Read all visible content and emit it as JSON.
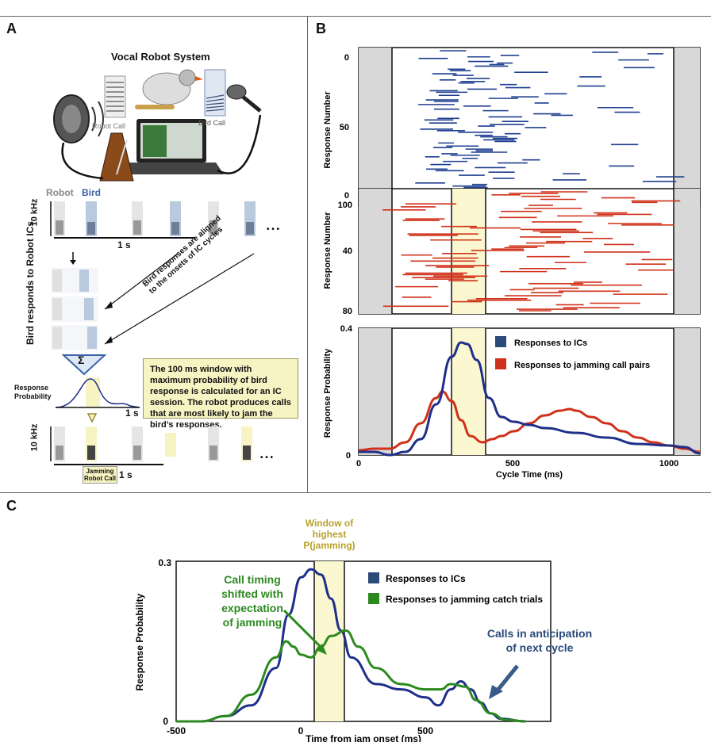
{
  "panels": {
    "A": {
      "label": "A",
      "title": "Vocal Robot System",
      "robot_call": "Robot Call",
      "bird_call": "Bird Call",
      "robot": "Robot",
      "bird": "Bird",
      "freq": "10 kHz",
      "scale": "1 s",
      "side_label": "Bird responds to Robot ICs",
      "arrow_text_1": "Bird responses are aligned",
      "arrow_text_2": "to the onsets of IC cycles",
      "sigma": "Σ",
      "response_probability": "Response Probability",
      "note": "The 100 ms window with maximum probability of bird response is calculated for an IC session. The robot produces calls that are most likely to jam the bird’s responses.",
      "jamming_1": "Jamming",
      "jamming_2": "Robot Call",
      "dots": "• • •"
    },
    "B": {
      "label": "B",
      "raster1_ylabel": "Response Number",
      "raster1_ticks": [
        "0",
        "50",
        "100"
      ],
      "raster2_ylabel": "Response Number",
      "raster2_ticks": [
        "0",
        "40",
        "80"
      ],
      "prob_ylabel": "Response Probability",
      "prob_ticks": [
        "0",
        "0.4"
      ],
      "xlabel": "Cycle Time (ms)",
      "xticks": [
        "0",
        "500",
        "1000"
      ],
      "legend": [
        "Responses to ICs",
        "Responses to jamming call pairs"
      ]
    },
    "C": {
      "label": "C",
      "window_label_1": "Window of",
      "window_label_2": "highest",
      "window_label_3": "P(jamming)",
      "ylabel": "Response Probability",
      "yticks": [
        "0",
        "0.3"
      ],
      "xlabel": "Time from jam onset (ms)",
      "xticks": [
        "-500",
        "0",
        "500"
      ],
      "legend": [
        "Responses to ICs",
        "Responses to jamming catch trials"
      ],
      "annot_green_1": "Call timing",
      "annot_green_2": "shifted with",
      "annot_green_3": "expectation",
      "annot_green_4": "of jamming",
      "annot_blue_1": "Calls in anticipation",
      "annot_blue_2": "of next cycle"
    }
  },
  "colors": {
    "blue": "#1f2f8a",
    "red": "#d0311a",
    "green": "#2b8a1e",
    "gold": "#b8a02a",
    "shade": "#d8d8d8",
    "window": "#fbf7d0"
  },
  "chart_data": [
    {
      "type": "line",
      "xlabel": "Cycle Time (ms)",
      "ylabel": "Response Probability",
      "xlim": [
        0,
        1100
      ],
      "ylim": [
        0,
        0.4
      ],
      "series": [
        {
          "name": "Responses to ICs",
          "x": [
            0,
            50,
            100,
            150,
            200,
            250,
            300,
            330,
            350,
            380,
            420,
            460,
            500,
            550,
            600,
            700,
            800,
            900,
            1000,
            1050,
            1100
          ],
          "y": [
            0.01,
            0.01,
            0,
            0.01,
            0.05,
            0.16,
            0.31,
            0.355,
            0.35,
            0.3,
            0.18,
            0.12,
            0.105,
            0.095,
            0.085,
            0.07,
            0.055,
            0.035,
            0.03,
            0.025,
            0.005
          ]
        },
        {
          "name": "Responses to jamming call pairs",
          "x": [
            0,
            50,
            100,
            150,
            200,
            250,
            270,
            300,
            330,
            360,
            400,
            430,
            460,
            500,
            550,
            600,
            650,
            680,
            700,
            750,
            800,
            850,
            900,
            950,
            1000,
            1050,
            1100
          ],
          "y": [
            0.015,
            0.02,
            0.02,
            0.04,
            0.1,
            0.18,
            0.2,
            0.17,
            0.11,
            0.06,
            0.04,
            0.05,
            0.06,
            0.075,
            0.1,
            0.125,
            0.14,
            0.145,
            0.14,
            0.12,
            0.1,
            0.075,
            0.055,
            0.04,
            0.03,
            0.02,
            0.01
          ]
        }
      ]
    },
    {
      "type": "line",
      "xlabel": "Time from jam onset (ms)",
      "ylabel": "Response Probability",
      "xlim": [
        -500,
        1000
      ],
      "ylim": [
        0,
        0.3
      ],
      "series": [
        {
          "name": "Responses to ICs",
          "x": [
            -500,
            -400,
            -300,
            -200,
            -100,
            -50,
            0,
            40,
            80,
            120,
            160,
            200,
            300,
            400,
            500,
            550,
            600,
            640,
            680,
            720,
            760,
            800,
            900
          ],
          "y": [
            0,
            0,
            0.01,
            0.03,
            0.1,
            0.2,
            0.27,
            0.285,
            0.275,
            0.23,
            0.17,
            0.12,
            0.07,
            0.06,
            0.045,
            0.03,
            0.06,
            0.075,
            0.06,
            0.035,
            0.015,
            0.005,
            0
          ]
        },
        {
          "name": "Responses to jamming catch trials",
          "x": [
            -500,
            -400,
            -300,
            -200,
            -100,
            -60,
            -30,
            0,
            40,
            80,
            120,
            180,
            230,
            300,
            400,
            500,
            560,
            600,
            660,
            700,
            760,
            820,
            900
          ],
          "y": [
            0,
            0,
            0.01,
            0.05,
            0.12,
            0.15,
            0.14,
            0.125,
            0.12,
            0.14,
            0.16,
            0.17,
            0.14,
            0.1,
            0.07,
            0.06,
            0.06,
            0.07,
            0.065,
            0.04,
            0.015,
            0.003,
            0
          ]
        }
      ]
    }
  ]
}
